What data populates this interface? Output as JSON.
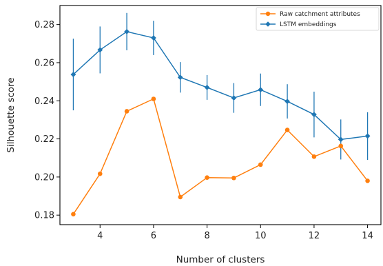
{
  "chart_data": {
    "type": "line",
    "xlabel": "Number of clusters",
    "ylabel": "Silhouette score",
    "xlim": [
      2.5,
      14.5
    ],
    "ylim": [
      0.175,
      0.29
    ],
    "xticks": [
      4,
      6,
      8,
      10,
      12,
      14
    ],
    "yticks": [
      0.18,
      0.2,
      0.22,
      0.24,
      0.26,
      0.28
    ],
    "ytick_labels": [
      "0.18",
      "0.20",
      "0.22",
      "0.24",
      "0.26",
      "0.28"
    ],
    "grid": false,
    "legend_position": "top-right",
    "x": [
      3,
      4,
      5,
      6,
      7,
      8,
      9,
      10,
      11,
      12,
      13,
      14
    ],
    "series": [
      {
        "name": "Raw catchment attributes",
        "color": "#ff7f0e",
        "marker": "circle",
        "values": [
          0.1805,
          0.2017,
          0.2345,
          0.241,
          0.1895,
          0.1997,
          0.1995,
          0.2065,
          0.2247,
          0.2107,
          0.2163,
          0.198
        ]
      },
      {
        "name": "LSTM embeddings",
        "color": "#1f77b4",
        "marker": "diamond",
        "values": [
          0.2538,
          0.2667,
          0.2763,
          0.273,
          0.2523,
          0.247,
          0.2415,
          0.2458,
          0.2397,
          0.2328,
          0.2197,
          0.2215
        ],
        "error": [
          0.0188,
          0.0123,
          0.0098,
          0.009,
          0.008,
          0.0065,
          0.0078,
          0.0085,
          0.009,
          0.012,
          0.0105,
          0.0125
        ]
      }
    ]
  }
}
